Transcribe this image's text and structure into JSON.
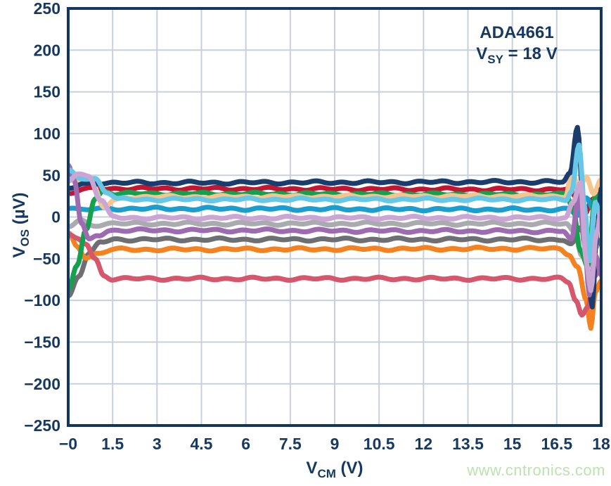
{
  "watermark": {
    "text": "www.cntronics.com",
    "color": "#bce3af"
  },
  "chart_data": {
    "type": "line",
    "annotation": {
      "part": "ADA4661",
      "vsy_prefix": "V",
      "vsy_sub": "SY",
      "vsy_suffix": " = 18 V"
    },
    "xlabel": {
      "prefix": "V",
      "sub": "CM",
      "suffix": " (V)"
    },
    "ylabel": {
      "prefix": "V",
      "sub": "OS",
      "suffix": " (µV)"
    },
    "xlim": [
      0,
      18
    ],
    "ylim": [
      -250,
      250
    ],
    "grid": true,
    "legend": "none",
    "x_ticks": [
      {
        "v": 0,
        "label": "−0"
      },
      {
        "v": 1.5,
        "label": "1.5"
      },
      {
        "v": 3,
        "label": "3"
      },
      {
        "v": 4.5,
        "label": "4.5"
      },
      {
        "v": 6,
        "label": "6"
      },
      {
        "v": 7.5,
        "label": "7.5"
      },
      {
        "v": 9,
        "label": "9"
      },
      {
        "v": 10.5,
        "label": "10.5"
      },
      {
        "v": 12,
        "label": "12"
      },
      {
        "v": 13.5,
        "label": "13.5"
      },
      {
        "v": 15,
        "label": "15"
      },
      {
        "v": 16.5,
        "label": "16.5"
      },
      {
        "v": 18,
        "label": "18"
      }
    ],
    "y_ticks": [
      {
        "v": 250,
        "label": "250"
      },
      {
        "v": 200,
        "label": "200"
      },
      {
        "v": 150,
        "label": "150"
      },
      {
        "v": 100,
        "label": "100"
      },
      {
        "v": 50,
        "label": "50"
      },
      {
        "v": 0,
        "label": "0"
      },
      {
        "v": -50,
        "label": "−50"
      },
      {
        "v": -100,
        "label": "−100"
      },
      {
        "v": -150,
        "label": "−150"
      },
      {
        "v": -200,
        "label": "−200"
      },
      {
        "v": -250,
        "label": "−250"
      }
    ],
    "colors": {
      "frame": "#14365c",
      "grid": "#c6d1dd",
      "text": "#17395f"
    },
    "series": [
      {
        "name": "trace-crimson",
        "color": "#c41532",
        "phase": 2.5,
        "points": [
          [
            0,
            28
          ],
          [
            0.5,
            33
          ],
          [
            1.0,
            34
          ],
          [
            16.9,
            33
          ],
          [
            17.2,
            20
          ],
          [
            17.45,
            5
          ],
          [
            17.7,
            22
          ],
          [
            18,
            28
          ]
        ]
      },
      {
        "name": "trace-teal",
        "color": "#1b9ece",
        "phase": 5.0,
        "points": [
          [
            0,
            12
          ],
          [
            0.5,
            8
          ],
          [
            1.0,
            10
          ],
          [
            16.9,
            9
          ],
          [
            17.2,
            2
          ],
          [
            17.5,
            22
          ],
          [
            17.75,
            8
          ],
          [
            18,
            16
          ]
        ]
      },
      {
        "name": "trace-silver",
        "color": "#a9abae",
        "phase": 3.4,
        "points": [
          [
            0,
            -12
          ],
          [
            0.4,
            -4
          ],
          [
            0.8,
            -10
          ],
          [
            1.3,
            -8
          ],
          [
            16.8,
            -8
          ],
          [
            17.1,
            -18
          ],
          [
            17.35,
            -45
          ],
          [
            17.6,
            -25
          ],
          [
            17.8,
            -38
          ],
          [
            18,
            -30
          ]
        ]
      },
      {
        "name": "trace-darkgray",
        "color": "#6e6f72",
        "phase": 2.0,
        "points": [
          [
            0,
            -95
          ],
          [
            0.35,
            -70
          ],
          [
            0.7,
            -45
          ],
          [
            1.1,
            -30
          ],
          [
            1.6,
            -27
          ],
          [
            16.7,
            -27
          ],
          [
            17.0,
            -33
          ],
          [
            17.3,
            -14
          ],
          [
            17.55,
            -38
          ],
          [
            17.75,
            -22
          ],
          [
            18,
            -33
          ]
        ]
      },
      {
        "name": "trace-orange",
        "color": "#f58220",
        "phase": 1.1,
        "points": [
          [
            0,
            -20
          ],
          [
            0.3,
            -35
          ],
          [
            0.6,
            -48
          ],
          [
            1.0,
            -44
          ],
          [
            1.5,
            -39
          ],
          [
            16.6,
            -38
          ],
          [
            16.9,
            -44
          ],
          [
            17.2,
            -60
          ],
          [
            17.5,
            -100
          ],
          [
            17.65,
            -133
          ],
          [
            17.8,
            -90
          ],
          [
            18,
            -78
          ]
        ]
      },
      {
        "name": "trace-rose",
        "color": "#d6576c",
        "phase": 0.3,
        "points": [
          [
            0,
            -22
          ],
          [
            0.3,
            -27
          ],
          [
            0.6,
            -32
          ],
          [
            0.9,
            -50
          ],
          [
            1.2,
            -70
          ],
          [
            1.5,
            -74
          ],
          [
            16.6,
            -74
          ],
          [
            16.9,
            -78
          ],
          [
            17.15,
            -100
          ],
          [
            17.35,
            -118
          ],
          [
            17.55,
            -108
          ],
          [
            17.75,
            -70
          ],
          [
            18,
            -60
          ]
        ]
      },
      {
        "name": "trace-green",
        "color": "#14a04c",
        "phase": 5.8,
        "points": [
          [
            0,
            -88
          ],
          [
            0.3,
            -60
          ],
          [
            0.6,
            -15
          ],
          [
            0.9,
            22
          ],
          [
            1.2,
            31
          ],
          [
            1.6,
            28
          ],
          [
            16.8,
            27
          ],
          [
            17.05,
            12
          ],
          [
            17.3,
            -40
          ],
          [
            17.55,
            -60
          ],
          [
            17.8,
            28
          ],
          [
            18,
            22
          ]
        ]
      },
      {
        "name": "trace-peach",
        "color": "#f6c48e",
        "phase": 1.7,
        "points": [
          [
            0,
            52
          ],
          [
            0.4,
            44
          ],
          [
            0.8,
            40
          ],
          [
            1.2,
            12
          ],
          [
            1.6,
            20
          ],
          [
            2.0,
            24
          ],
          [
            16.8,
            25
          ],
          [
            17.0,
            55
          ],
          [
            17.25,
            32
          ],
          [
            17.5,
            48
          ],
          [
            17.75,
            28
          ],
          [
            18,
            44
          ]
        ]
      },
      {
        "name": "trace-navy",
        "color": "#1b3d6e",
        "phase": 3.2,
        "points": [
          [
            0,
            34
          ],
          [
            0.5,
            39
          ],
          [
            1.0,
            41
          ],
          [
            16.7,
            42
          ],
          [
            16.95,
            52
          ],
          [
            17.2,
            108
          ],
          [
            17.4,
            20
          ],
          [
            17.55,
            -70
          ],
          [
            17.7,
            -108
          ],
          [
            17.85,
            -20
          ],
          [
            18,
            33
          ]
        ]
      },
      {
        "name": "trace-medpurple",
        "color": "#9c6bb0",
        "phase": 2.7,
        "points": [
          [
            0,
            62
          ],
          [
            0.2,
            45
          ],
          [
            0.45,
            -8
          ],
          [
            0.7,
            -28
          ],
          [
            1.0,
            -22
          ],
          [
            1.4,
            -16
          ],
          [
            16.7,
            -17
          ],
          [
            17.0,
            -28
          ],
          [
            17.25,
            28
          ],
          [
            17.45,
            -35
          ],
          [
            17.6,
            -92
          ],
          [
            17.8,
            -45
          ],
          [
            18,
            -70
          ]
        ]
      },
      {
        "name": "trace-sky",
        "color": "#66c7e6",
        "phase": 0.9,
        "points": [
          [
            0,
            55
          ],
          [
            0.4,
            47
          ],
          [
            0.9,
            46
          ],
          [
            1.3,
            30
          ],
          [
            1.7,
            21
          ],
          [
            16.8,
            21
          ],
          [
            17.0,
            32
          ],
          [
            17.25,
            86
          ],
          [
            17.45,
            10
          ],
          [
            17.6,
            -52
          ],
          [
            17.8,
            18
          ],
          [
            18,
            -2
          ]
        ]
      },
      {
        "name": "trace-lavender",
        "color": "#c9a6d4",
        "phase": 4.2,
        "points": [
          [
            0,
            44
          ],
          [
            0.3,
            52
          ],
          [
            0.7,
            49
          ],
          [
            1.1,
            20
          ],
          [
            1.5,
            0
          ],
          [
            1.9,
            -1
          ],
          [
            16.8,
            -1
          ],
          [
            17.05,
            18
          ],
          [
            17.3,
            42
          ],
          [
            17.5,
            -55
          ],
          [
            17.65,
            -90
          ],
          [
            17.85,
            -20
          ],
          [
            18,
            8
          ]
        ]
      }
    ]
  }
}
